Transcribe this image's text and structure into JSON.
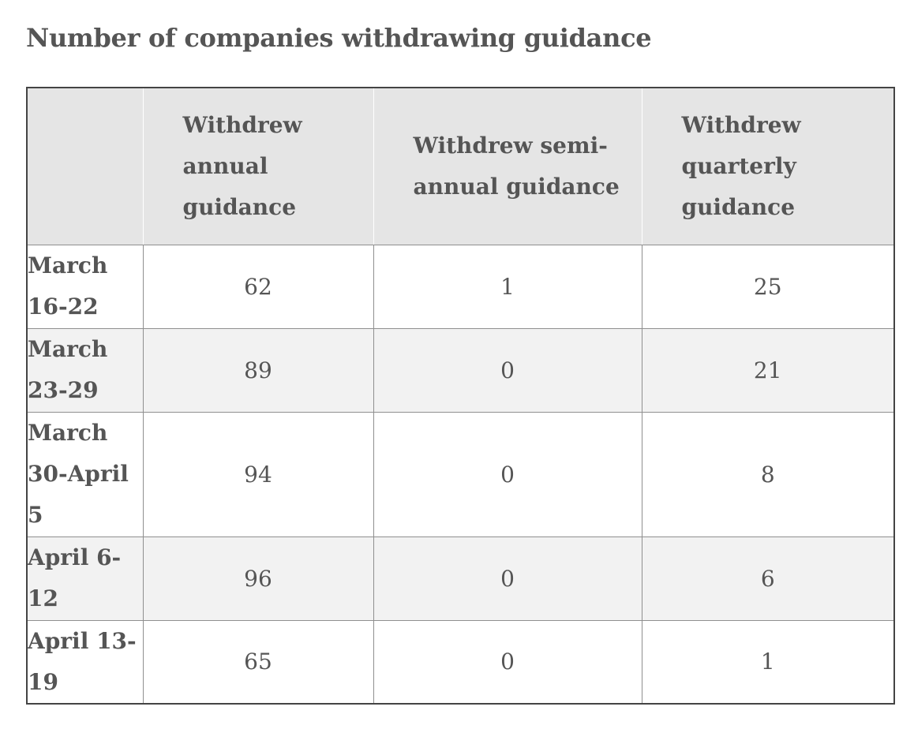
{
  "chart_data": {
    "type": "table",
    "title": "Number of companies withdrawing guidance",
    "columns": [
      "",
      "Withdrew annual guidance",
      "Withdrew semi-annual guidance",
      "Withdrew quarterly guidance"
    ],
    "rows": [
      {
        "label": "March 16-22",
        "values": [
          "62",
          "1",
          "25"
        ]
      },
      {
        "label": "March 23-29",
        "values": [
          "89",
          "0",
          "21"
        ]
      },
      {
        "label": "March 30-April 5",
        "values": [
          "94",
          "0",
          "8"
        ]
      },
      {
        "label": "April 6-12",
        "values": [
          "96",
          "0",
          "6"
        ]
      },
      {
        "label": "April 13-19",
        "values": [
          "65",
          "0",
          "1"
        ]
      }
    ]
  }
}
